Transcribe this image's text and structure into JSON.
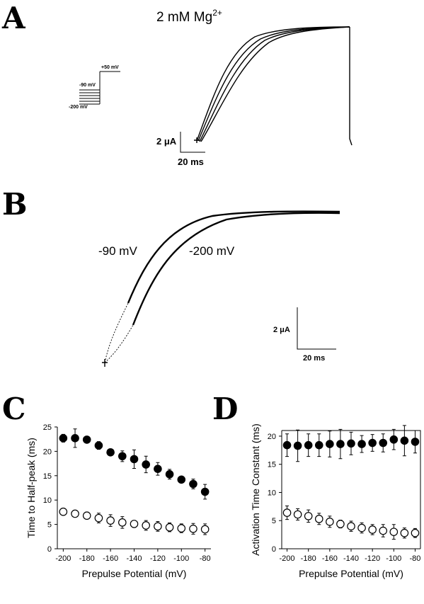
{
  "panels": {
    "a": {
      "letter": "A",
      "title": "2 mM Mg",
      "title_sup": "2+",
      "protocol": {
        "v_hold": "-90 mV",
        "v_test": "+50 mV",
        "v_min": "-200 mV"
      },
      "scale": {
        "y": "2 μA",
        "x": "20 ms"
      }
    },
    "b": {
      "letter": "B",
      "trace_label_1": "-90 mV",
      "trace_label_2": "-200 mV",
      "scale": {
        "y": "2 μA",
        "x": "20 ms"
      }
    },
    "c": {
      "letter": "C"
    },
    "d": {
      "letter": "D"
    }
  },
  "chart_data": [
    {
      "type": "scatter",
      "xlabel": "Prepulse Potential (mV)",
      "ylabel": "Time to Half-peak (ms)",
      "xlim": [
        -205,
        -75
      ],
      "ylim": [
        0,
        25
      ],
      "xticks": [
        -200,
        -180,
        -160,
        -140,
        -120,
        -100,
        -80
      ],
      "yticks": [
        0,
        5,
        10,
        15,
        20,
        25
      ],
      "x": [
        -200,
        -190,
        -180,
        -170,
        -160,
        -150,
        -140,
        -130,
        -120,
        -110,
        -100,
        -90,
        -80
      ],
      "series": [
        {
          "marker": "filled",
          "values": [
            22.7,
            22.7,
            22.4,
            21.2,
            19.8,
            19.0,
            18.4,
            17.3,
            16.4,
            15.3,
            14.2,
            13.3,
            11.7
          ],
          "errors": [
            0.8,
            1.9,
            0.5,
            0.8,
            0.5,
            1.1,
            1.9,
            1.7,
            1.3,
            1.0,
            0.5,
            1.0,
            1.5
          ]
        },
        {
          "marker": "open",
          "values": [
            7.6,
            7.2,
            6.8,
            6.3,
            5.8,
            5.4,
            5.1,
            4.8,
            4.6,
            4.4,
            4.2,
            4.1,
            4.0
          ],
          "errors": [
            0.4,
            0.4,
            0.7,
            1.0,
            1.2,
            1.2,
            0.7,
            1.0,
            1.0,
            0.9,
            0.9,
            1.1,
            1.1
          ]
        }
      ]
    },
    {
      "type": "scatter",
      "xlabel": "Prepulse Potential (mV)",
      "ylabel": "Activation Time Constant (ms)",
      "xlim": [
        -205,
        -75
      ],
      "ylim": [
        0,
        21
      ],
      "xticks": [
        -200,
        -180,
        -160,
        -140,
        -120,
        -100,
        -80
      ],
      "yticks": [
        0,
        5,
        10,
        15,
        20
      ],
      "x": [
        -200,
        -190,
        -180,
        -170,
        -160,
        -150,
        -140,
        -130,
        -120,
        -110,
        -100,
        -90,
        -80
      ],
      "series": [
        {
          "marker": "filled",
          "values": [
            18.4,
            18.3,
            18.4,
            18.4,
            18.6,
            18.6,
            18.7,
            18.6,
            18.8,
            18.8,
            19.4,
            19.2,
            19.0
          ],
          "errors": [
            2.0,
            2.8,
            2.0,
            2.0,
            2.3,
            2.6,
            2.0,
            1.5,
            1.5,
            1.6,
            1.8,
            2.7,
            2.0
          ]
        },
        {
          "marker": "open",
          "values": [
            6.4,
            6.1,
            5.8,
            5.3,
            4.8,
            4.4,
            4.0,
            3.7,
            3.4,
            3.2,
            3.0,
            2.8,
            2.8
          ],
          "errors": [
            1.2,
            1.0,
            1.1,
            1.0,
            1.0,
            0.7,
            0.9,
            0.9,
            0.9,
            1.1,
            1.3,
            0.9,
            0.8
          ]
        }
      ]
    }
  ]
}
